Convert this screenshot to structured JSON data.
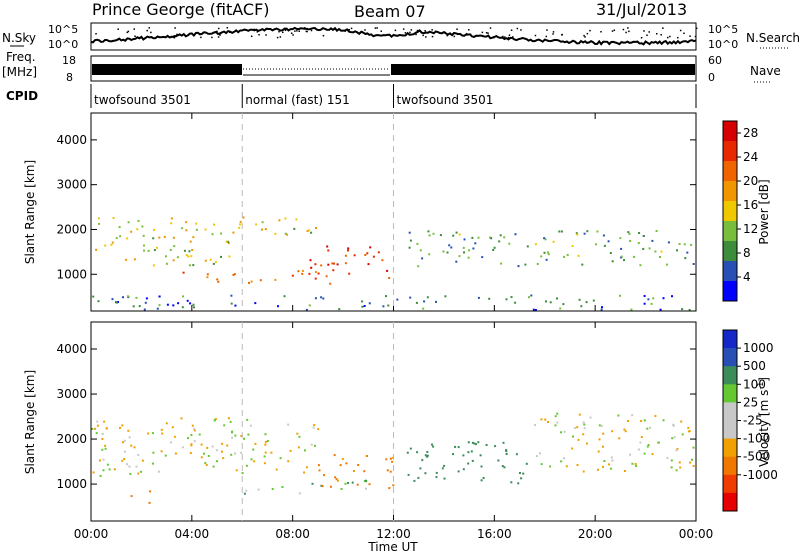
{
  "header": {
    "station": "Prince George (fitACF)",
    "beam": "Beam 07",
    "date": "31/Jul/2013"
  },
  "top_panels": {
    "nsky_label": "N.Sky",
    "nsky_ticks": [
      "10^5",
      "10^0"
    ],
    "nsearch_label": "N.Search",
    "nsearch_ticks": [
      "10^5",
      "10^0"
    ],
    "freq_label_1": "Freq.",
    "freq_label_2": "[MHz]",
    "freq_ticks": [
      "18",
      "8"
    ],
    "nave_label": "Nave",
    "nave_ticks": [
      "60",
      "0"
    ],
    "cpid_label": "CPID"
  },
  "colors": {
    "power_scale": [
      "#0000ff",
      "#2850b4",
      "#3c8c3c",
      "#78be3c",
      "#f0c800",
      "#f09600",
      "#f06400",
      "#e82800",
      "#d70000"
    ],
    "velocity_scale": [
      "#e60000",
      "#f03c00",
      "#f07800",
      "#f0a000",
      "#c8c8c8",
      "#c8c8c8",
      "#64c832",
      "#3c8c5a",
      "#2850b4",
      "#1428c8"
    ]
  },
  "chart_data": [
    {
      "type": "heatmap",
      "name_panel": "power",
      "ylabel": "Slant Range [km]",
      "xlabel": "",
      "y_ticks": [
        "1000",
        "2000",
        "3000",
        "4000"
      ],
      "ylim": [
        180,
        4600
      ],
      "colorbar_label": "Power [dB]",
      "colorbar_ticks": [
        "4",
        "8",
        "12",
        "16",
        "20",
        "24",
        "28"
      ],
      "colorbar_range": [
        0,
        30
      ],
      "regions": [
        {
          "t0": 0.0,
          "t1": 9.0,
          "r0": 1800,
          "r1": 2300,
          "v": 14
        },
        {
          "t0": 0.0,
          "t1": 5.5,
          "r0": 1200,
          "r1": 1800,
          "v": 13
        },
        {
          "t0": 3.5,
          "t1": 9.5,
          "r0": 800,
          "r1": 1100,
          "v": 22
        },
        {
          "t0": 8.5,
          "t1": 11.8,
          "r0": 900,
          "r1": 1650,
          "v": 26
        },
        {
          "t0": 12.5,
          "t1": 24.0,
          "r0": 1200,
          "r1": 2000,
          "v": 9
        },
        {
          "t0": 0.0,
          "t1": 24.0,
          "r0": 200,
          "r1": 550,
          "v": 6
        }
      ]
    },
    {
      "type": "heatmap",
      "name_panel": "velocity",
      "ylabel": "Slant Range [km]",
      "xlabel": "Time UT",
      "x_ticks": [
        "00:00",
        "04:00",
        "08:00",
        "12:00",
        "16:00",
        "20:00",
        "00:00"
      ],
      "y_ticks": [
        "1000",
        "2000",
        "3000",
        "4000"
      ],
      "ylim": [
        180,
        4600
      ],
      "colorbar_label": "Velocity [m s-1]",
      "colorbar_ticks": [
        "1000",
        "500",
        "100",
        "25",
        "-25",
        "-100",
        "-500",
        "-1000"
      ],
      "regions": [
        {
          "t0": 0.0,
          "t1": 9.0,
          "r0": 1200,
          "r1": 2500,
          "v": 0
        },
        {
          "t0": 6.0,
          "t1": 11.0,
          "r0": 800,
          "r1": 1100,
          "v": 80
        },
        {
          "t0": 9.0,
          "t1": 12.0,
          "r0": 900,
          "r1": 1700,
          "v": -150
        },
        {
          "t0": 1.5,
          "t1": 2.5,
          "r0": 600,
          "r1": 900,
          "v": -300
        },
        {
          "t0": 12.5,
          "t1": 17.5,
          "r0": 1000,
          "r1": 2000,
          "v": 300
        },
        {
          "t0": 17.5,
          "t1": 24.0,
          "r0": 1300,
          "r1": 2600,
          "v": 0
        }
      ]
    }
  ],
  "cpid_segments": [
    {
      "label": "twofsound 3501",
      "t0": 0.0,
      "t1": 6.0
    },
    {
      "label": "normal (fast) 151",
      "t0": 6.0,
      "t1": 12.0
    },
    {
      "label": "twofsound 3501",
      "t0": 12.0,
      "t1": 24.0
    }
  ],
  "power_colorbar": {
    "label": "Power [dB]"
  },
  "velocity_colorbar": {
    "label_main": "Velocity [m s",
    "label_sup": "-1",
    "label_end": "]"
  }
}
